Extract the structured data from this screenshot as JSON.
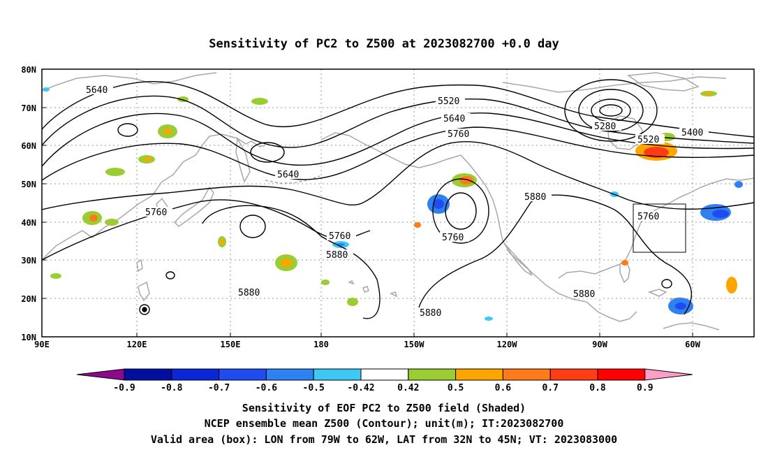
{
  "title": "Sensitivity of PC2 to Z500 at 2023082700 +0.0 day",
  "lat_labels": [
    "80N",
    "70N",
    "60N",
    "50N",
    "40N",
    "30N",
    "20N",
    "10N"
  ],
  "lon_labels": [
    "90E",
    "120E",
    "150E",
    "180",
    "150W",
    "120W",
    "90W",
    "60W"
  ],
  "contour_labels": [
    "5640",
    "5520",
    "5640",
    "5760",
    "5280",
    "5520",
    "5400",
    "5640",
    "5760",
    "5880",
    "5760",
    "5880",
    "5760",
    "5880",
    "5880",
    "5880"
  ],
  "colorbar": {
    "ticks": [
      "-0.9",
      "-0.8",
      "-0.7",
      "-0.6",
      "-0.5",
      "-0.42",
      "0.42",
      "0.5",
      "0.6",
      "0.7",
      "0.8",
      "0.9"
    ],
    "colors": [
      "#8b0a8b",
      "#000fa0",
      "#0a28d8",
      "#1e4cf0",
      "#2f80f0",
      "#3ec8f5",
      "#ffffff",
      "#9acd32",
      "#ffa500",
      "#ff7a1a",
      "#ff3c14",
      "#ff0000",
      "#ff9ec8"
    ]
  },
  "captions": [
    "Sensitivity of EOF PC2 to Z500 field (Shaded)",
    "NCEP ensemble mean Z500 (Contour); unit(m); IT:2023082700",
    "Valid area (box): LON from 79W to 62W, LAT from 32N to 45N; VT: 2023083000"
  ]
}
